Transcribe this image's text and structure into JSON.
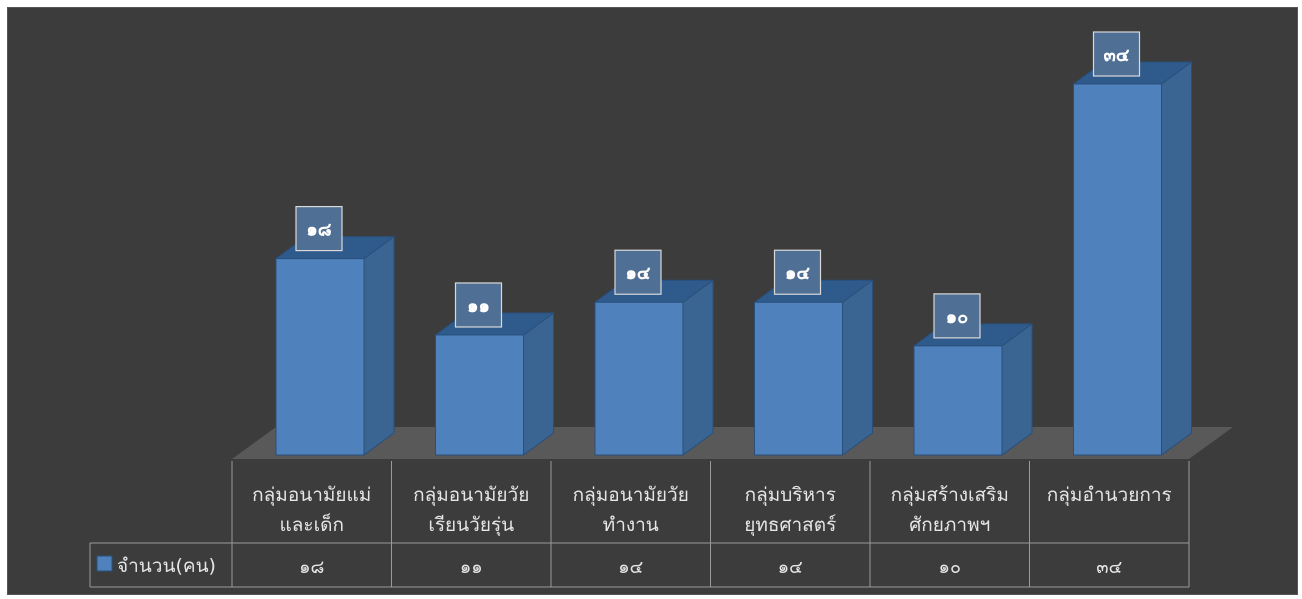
{
  "chart_data": {
    "type": "bar",
    "style": "3d-column-with-data-table",
    "categories": [
      [
        "กลุ่มอนามัยแม่",
        "และเด็ก"
      ],
      [
        "กลุ่มอนามัยวัย",
        "เรียนวัยรุ่น"
      ],
      [
        "กลุ่มอนามัยวัย",
        "ทำงาน"
      ],
      [
        "กลุ่มบริหาร",
        "ยุทธศาสตร์"
      ],
      [
        "กลุ่มสร้างเสริม",
        "ศักยภาพฯ"
      ],
      [
        "กลุ่มอำนวยการ"
      ]
    ],
    "series": [
      {
        "name": "จำนวน(คน)",
        "values": [
          18,
          11,
          14,
          14,
          10,
          34
        ],
        "labels": [
          "๑๘",
          "๑๑",
          "๑๔",
          "๑๔",
          "๑๐",
          "๓๔"
        ],
        "color": "#4f81bd"
      }
    ],
    "ylim": [
      0,
      34
    ],
    "gridlines": false,
    "legend": "data-table-left",
    "colors": {
      "background": "#3c3c3c",
      "floor": "#595959",
      "bar_front": "#4f81bd",
      "bar_side": "#3a6593",
      "bar_top": "#2f5b8c",
      "table_lines": "#9a9a9a",
      "text": "#e6e6e6"
    }
  }
}
